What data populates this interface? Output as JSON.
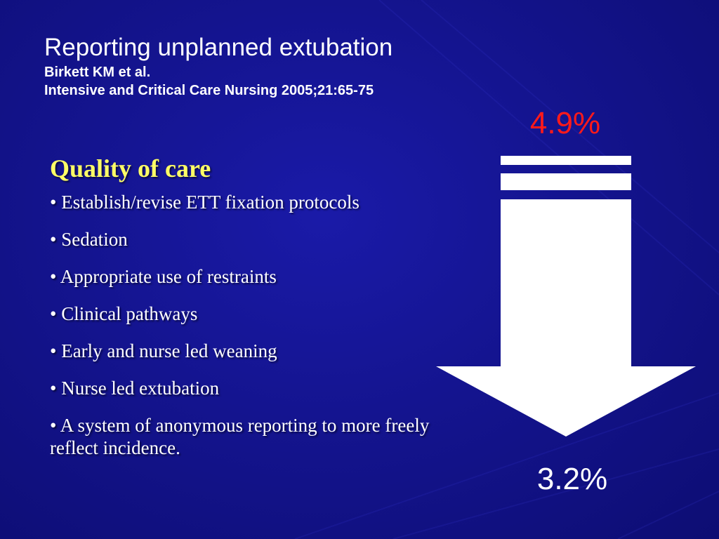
{
  "header": {
    "title": "Reporting unplanned extubation",
    "authors": "Birkett KM et al.",
    "journal": "Intensive and Critical Care Nursing 2005;21:65-75"
  },
  "main": {
    "section_title": "Quality of care",
    "bullets": [
      "• Establish/revise ETT fixation protocols",
      "• Sedation",
      "• Appropriate use of restraints",
      "• Clinical pathways",
      "• Early and nurse led weaning",
      "• Nurse led extubation",
      "• A system of anonymous reporting to more freely reflect incidence."
    ]
  },
  "graphic": {
    "start_value": "4.9%",
    "end_value": "3.2%",
    "arrow_direction": "down"
  },
  "colors": {
    "background": "#14148f",
    "title_text": "#ffffff",
    "section_title": "#ffff66",
    "start_value": "#ff1a1a",
    "end_value": "#ffffff",
    "arrow": "#ffffff"
  }
}
